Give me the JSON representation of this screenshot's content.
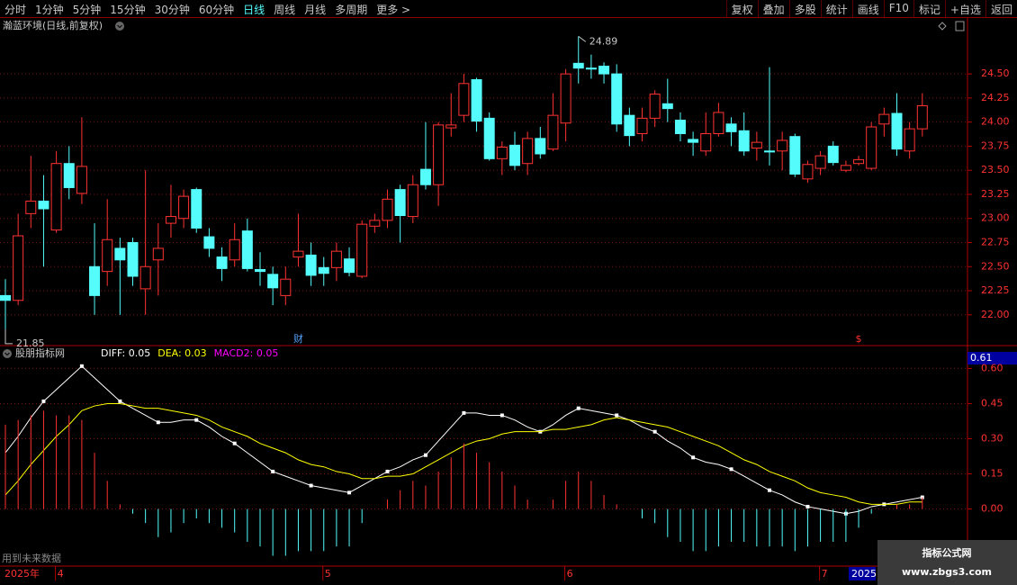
{
  "toolbar": {
    "left": [
      "分时",
      "1分钟",
      "5分钟",
      "15分钟",
      "30分钟",
      "60分钟",
      "日线",
      "周线",
      "月线",
      "多周期",
      "更多 >"
    ],
    "active": 6,
    "right": [
      "复权",
      "叠加",
      "多股",
      "统计",
      "画线",
      "F10",
      "标记",
      "+自选",
      "返回"
    ]
  },
  "chart_data": [
    {
      "type": "candlestick",
      "title": "瀚蓝环境(日线,前复权)",
      "up_color": "#ff3232",
      "down_color": "#54fcfc",
      "open": [
        22.2,
        22.15,
        23.05,
        23.18,
        22.88,
        23.57,
        23.26,
        22.5,
        22.45,
        22.69,
        22.75,
        22.27,
        22.57,
        22.95,
        23.0,
        23.3,
        22.81,
        22.6,
        22.57,
        22.87,
        22.47,
        22.42,
        22.2,
        22.6,
        22.62,
        22.49,
        22.49,
        22.58,
        22.4,
        22.92,
        22.98,
        23.3,
        23.02,
        23.51,
        23.35,
        23.94,
        24.07,
        24.44,
        24.04,
        23.62,
        23.76,
        23.57,
        23.83,
        23.72,
        23.99,
        24.61,
        24.56,
        24.58,
        24.5,
        24.07,
        23.88,
        24.04,
        24.19,
        24.02,
        23.82,
        23.7,
        23.88,
        23.98,
        23.91,
        23.73,
        23.7,
        23.7,
        23.85,
        23.41,
        23.52,
        23.75,
        23.5,
        23.57,
        23.52,
        23.98,
        24.09,
        23.7,
        23.93
      ],
      "high": [
        22.37,
        23.05,
        23.65,
        23.45,
        23.7,
        23.75,
        24.05,
        22.95,
        23.2,
        22.8,
        22.8,
        23.5,
        22.95,
        23.35,
        23.3,
        23.32,
        22.9,
        22.7,
        22.95,
        23.0,
        22.65,
        22.5,
        22.5,
        23.05,
        22.75,
        22.6,
        22.75,
        22.7,
        22.98,
        23.05,
        23.3,
        23.35,
        23.45,
        24.0,
        24.0,
        24.3,
        24.5,
        24.46,
        24.1,
        23.8,
        23.9,
        23.9,
        23.95,
        24.3,
        24.55,
        24.89,
        24.7,
        24.62,
        24.6,
        24.15,
        24.15,
        24.33,
        24.45,
        24.1,
        23.9,
        24.1,
        24.2,
        24.05,
        24.1,
        23.9,
        24.57,
        23.9,
        23.88,
        23.6,
        23.7,
        23.8,
        23.6,
        23.65,
        24.0,
        24.15,
        24.3,
        24.0,
        24.3
      ],
      "low": [
        21.85,
        22.1,
        22.9,
        22.5,
        22.85,
        23.2,
        23.15,
        22.0,
        22.3,
        22.0,
        22.3,
        22.0,
        22.2,
        22.8,
        22.9,
        22.85,
        22.6,
        22.35,
        22.5,
        22.45,
        22.3,
        22.1,
        22.1,
        22.5,
        22.3,
        22.3,
        22.35,
        22.4,
        22.38,
        22.85,
        22.9,
        22.75,
        22.95,
        23.3,
        23.13,
        23.85,
        24.0,
        23.9,
        23.6,
        23.45,
        23.5,
        23.45,
        23.62,
        23.7,
        23.8,
        24.4,
        24.45,
        24.4,
        23.9,
        23.75,
        23.8,
        23.95,
        24.0,
        23.8,
        23.65,
        23.65,
        23.85,
        23.75,
        23.65,
        23.6,
        23.55,
        23.5,
        23.43,
        23.37,
        23.45,
        23.55,
        23.48,
        23.55,
        23.5,
        23.85,
        23.65,
        23.62,
        23.85
      ],
      "close": [
        22.15,
        22.82,
        23.18,
        23.1,
        23.57,
        23.32,
        23.54,
        22.2,
        22.78,
        22.57,
        22.4,
        22.5,
        22.69,
        23.02,
        23.23,
        22.9,
        22.69,
        22.48,
        22.78,
        22.48,
        22.45,
        22.28,
        22.37,
        22.66,
        22.41,
        22.43,
        22.66,
        22.44,
        22.94,
        22.98,
        23.2,
        23.03,
        23.35,
        23.35,
        23.97,
        23.97,
        24.4,
        24.01,
        23.62,
        23.74,
        23.55,
        23.83,
        23.67,
        24.07,
        24.5,
        24.56,
        24.55,
        24.5,
        23.98,
        23.86,
        24.04,
        24.29,
        24.14,
        23.88,
        23.79,
        23.88,
        24.1,
        23.9,
        23.7,
        23.79,
        23.69,
        23.81,
        23.46,
        23.56,
        23.65,
        23.58,
        23.55,
        23.61,
        23.95,
        24.08,
        23.72,
        23.93,
        24.17
      ],
      "ylim": [
        21.69,
        25.08
      ],
      "yticks": [
        {
          "value": 22,
          "label": "22.00"
        },
        {
          "value": 22.25,
          "label": "22.25"
        },
        {
          "value": 22.5,
          "label": "22.50"
        },
        {
          "value": 22.75,
          "label": "22.75"
        },
        {
          "value": 23,
          "label": "23.00"
        },
        {
          "value": 23.25,
          "label": "23.25"
        },
        {
          "value": 23.5,
          "label": "23.50"
        },
        {
          "value": 23.75,
          "label": "23.75"
        },
        {
          "value": 24,
          "label": "24.00"
        },
        {
          "value": 24.25,
          "label": "24.25"
        },
        {
          "value": 24.5,
          "label": "24.50"
        }
      ],
      "grid": true,
      "annotations": [
        {
          "index": 45,
          "at": "high",
          "text": "24.89"
        },
        {
          "index": 0,
          "at": "low",
          "text": "21.85"
        }
      ],
      "events": [
        {
          "index": 23,
          "label": "财"
        },
        {
          "index": 67,
          "label": "$"
        }
      ]
    },
    {
      "type": "line",
      "title": "股朋指标网",
      "header_labels": [
        {
          "text": "DIFF: 0.05",
          "color": "#ffffff"
        },
        {
          "text": "DEA: 0.03",
          "color": "#ffff00"
        },
        {
          "text": "MACD2: 0.05",
          "color": "#ff00ff"
        }
      ],
      "current_label": "0.61",
      "series": [
        {
          "name": "DIFF",
          "style": "line",
          "color": "#ffffff",
          "values": [
            0.24,
            0.31,
            0.39,
            0.46,
            0.51,
            0.56,
            0.61,
            0.56,
            0.51,
            0.46,
            0.43,
            0.4,
            0.37,
            0.37,
            0.38,
            0.38,
            0.35,
            0.31,
            0.28,
            0.24,
            0.2,
            0.16,
            0.14,
            0.12,
            0.1,
            0.09,
            0.08,
            0.07,
            0.1,
            0.13,
            0.16,
            0.18,
            0.21,
            0.23,
            0.29,
            0.35,
            0.41,
            0.41,
            0.4,
            0.4,
            0.38,
            0.35,
            0.33,
            0.36,
            0.4,
            0.43,
            0.42,
            0.41,
            0.4,
            0.38,
            0.35,
            0.33,
            0.29,
            0.26,
            0.22,
            0.2,
            0.19,
            0.17,
            0.14,
            0.11,
            0.08,
            0.06,
            0.03,
            0.01,
            0,
            -0.01,
            -0.02,
            -0.01,
            0.01,
            0.02,
            0.03,
            0.04,
            0.05
          ]
        },
        {
          "name": "DEA",
          "style": "line",
          "color": "#ffff00",
          "values": [
            0.06,
            0.12,
            0.19,
            0.25,
            0.31,
            0.36,
            0.42,
            0.44,
            0.45,
            0.45,
            0.44,
            0.43,
            0.43,
            0.42,
            0.41,
            0.4,
            0.38,
            0.35,
            0.33,
            0.31,
            0.28,
            0.26,
            0.24,
            0.21,
            0.19,
            0.18,
            0.16,
            0.15,
            0.13,
            0.13,
            0.14,
            0.14,
            0.15,
            0.18,
            0.21,
            0.24,
            0.27,
            0.29,
            0.3,
            0.32,
            0.33,
            0.33,
            0.33,
            0.34,
            0.34,
            0.35,
            0.36,
            0.38,
            0.39,
            0.38,
            0.37,
            0.36,
            0.35,
            0.33,
            0.31,
            0.29,
            0.27,
            0.24,
            0.21,
            0.19,
            0.16,
            0.14,
            0.12,
            0.09,
            0.07,
            0.06,
            0.05,
            0.03,
            0.02,
            0.02,
            0.02,
            0.03,
            0.03
          ]
        },
        {
          "name": "MACD2",
          "style": "histogram",
          "color": "#ff00ff",
          "up_color": "#ff3232",
          "down_color": "#54fcfc",
          "values": [
            0.36,
            0.38,
            0.4,
            0.42,
            0.4,
            0.4,
            0.38,
            0.24,
            0.12,
            0.02,
            -0.02,
            -0.06,
            -0.12,
            -0.1,
            -0.06,
            -0.04,
            -0.06,
            -0.08,
            -0.1,
            -0.14,
            -0.16,
            -0.2,
            -0.2,
            -0.18,
            -0.18,
            -0.18,
            -0.16,
            -0.16,
            -0.06,
            0,
            0.04,
            0.08,
            0.12,
            0.1,
            0.16,
            0.22,
            0.28,
            0.24,
            0.2,
            0.16,
            0.1,
            0.04,
            0,
            0.04,
            0.12,
            0.16,
            0.12,
            0.06,
            0.02,
            0,
            -0.04,
            -0.06,
            -0.12,
            -0.14,
            -0.18,
            -0.18,
            -0.16,
            -0.14,
            -0.14,
            -0.16,
            -0.16,
            -0.16,
            -0.18,
            -0.16,
            -0.14,
            -0.14,
            -0.14,
            -0.08,
            -0.02,
            0,
            0.02,
            0.02,
            0.05
          ]
        }
      ],
      "ylim": [
        -0.24,
        0.69
      ],
      "yticks": [
        {
          "value": 0,
          "label": "0.00"
        },
        {
          "value": 0.15,
          "label": "0.15"
        },
        {
          "value": 0.3,
          "label": "0.30"
        },
        {
          "value": 0.45,
          "label": "0.45"
        },
        {
          "value": 0.6,
          "label": "0.60"
        }
      ],
      "grid": true
    }
  ],
  "time_axis": {
    "year_label": "2025年",
    "months": [
      {
        "index": 4,
        "label": "4"
      },
      {
        "index": 25,
        "label": "5"
      },
      {
        "index": 44,
        "label": "6"
      },
      {
        "index": 64,
        "label": "7"
      }
    ],
    "cursor_label": "2025"
  },
  "footer_note": "用到未来数据",
  "watermark": {
    "title": "指标公式网",
    "url": "www.zbgs3.com"
  }
}
